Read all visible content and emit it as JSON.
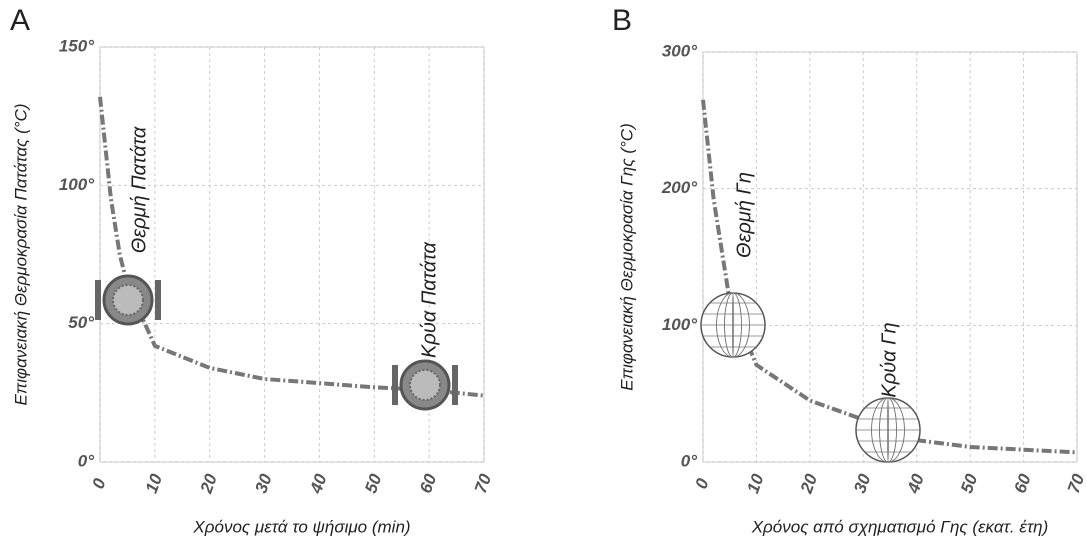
{
  "chart_data": [
    {
      "type": "line",
      "panel": "A",
      "x_label": "Χρόνος μετά το ψήσιμο (min)",
      "y_label": "Επιφανειακή Θερμοκρασία Πατάτας (°C)",
      "annotations": [
        "Θερμή Πατάτα",
        "Κρύα Πατάτα"
      ],
      "x": [
        0,
        2,
        3.6,
        5,
        10,
        20,
        30,
        40,
        50,
        60,
        70
      ],
      "values": [
        132,
        95,
        75,
        64,
        42,
        34,
        30,
        28.5,
        27,
        26,
        24
      ],
      "color": "#777777",
      "xlim": [
        0,
        70
      ],
      "xticks": [
        0,
        10,
        20,
        30,
        40,
        50,
        60,
        70
      ],
      "ylim": [
        0,
        150
      ],
      "yticks": [
        {
          "value": 0,
          "label": "0°"
        },
        {
          "value": 50,
          "label": "50°"
        },
        {
          "value": 100,
          "label": "100°"
        },
        {
          "value": 150,
          "label": "150°"
        }
      ],
      "grid": true
    },
    {
      "type": "line",
      "panel": "B",
      "x_label": "Χρόνος από σχηματισμό Γης (εκατ. έτη)",
      "y_label": "Επιφανειακή Θερμοκρασία Γης (°C)",
      "annotations": [
        "Θερμή Γη",
        "Κρύα Γη"
      ],
      "x": [
        0,
        2,
        5,
        10,
        20,
        30,
        35,
        40,
        50,
        60,
        70
      ],
      "values": [
        265,
        192,
        118,
        71,
        45,
        31,
        25,
        16,
        11,
        9,
        7
      ],
      "color": "#777777",
      "xlim": [
        0,
        70
      ],
      "xticks": [
        0,
        10,
        20,
        30,
        40,
        50,
        60,
        70
      ],
      "ylim": [
        0,
        300
      ],
      "yticks": [
        {
          "value": 0,
          "label": "0°"
        },
        {
          "value": 100,
          "label": "100°"
        },
        {
          "value": 200,
          "label": "200°"
        },
        {
          "value": 300,
          "label": "300°"
        }
      ],
      "grid": true
    }
  ]
}
